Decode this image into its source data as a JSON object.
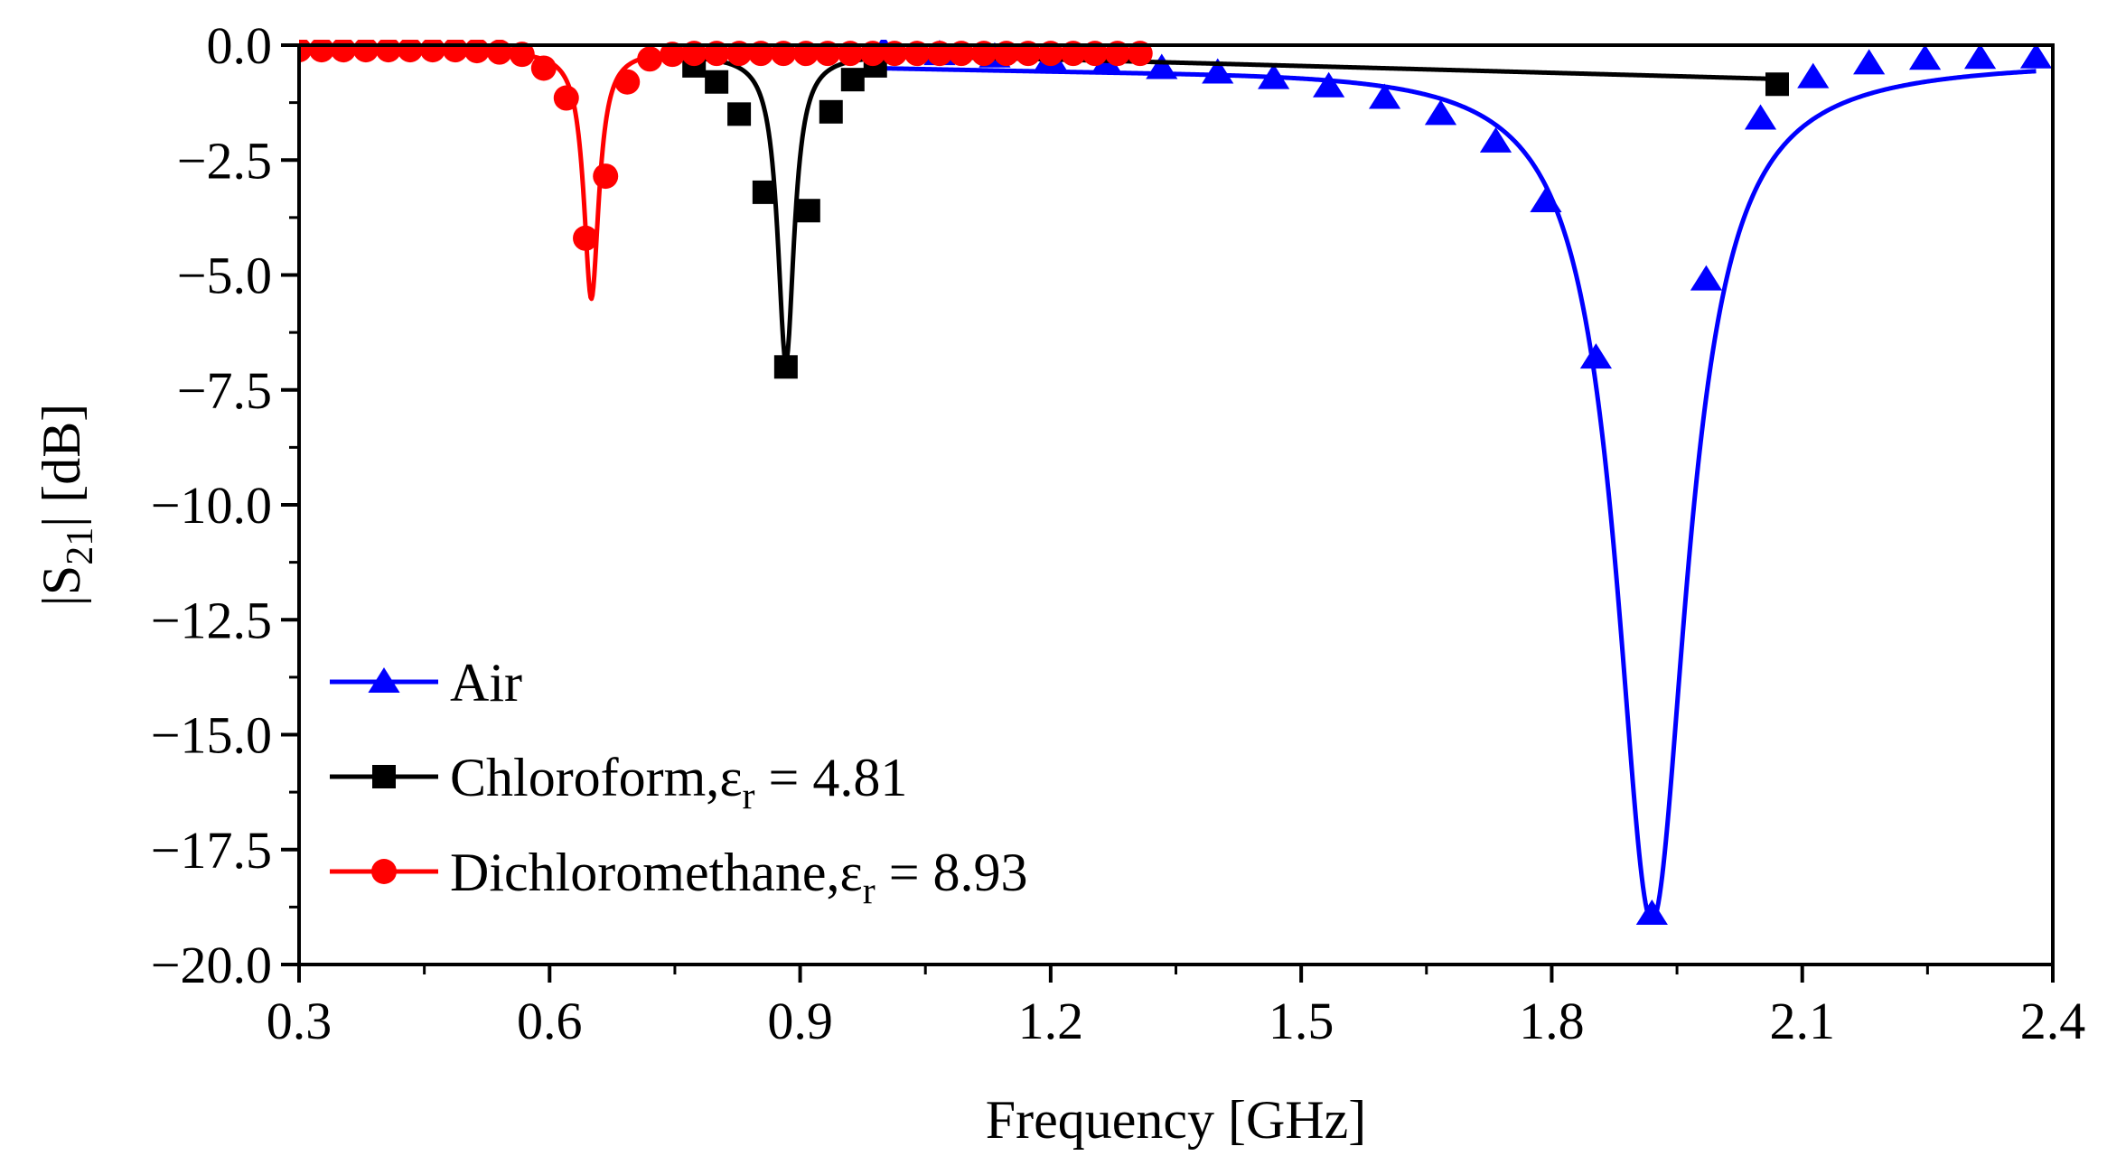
{
  "chart_data": {
    "type": "line",
    "xlabel": "Frequency [GHz]",
    "ylabel": {
      "prefix": "|S",
      "sub": "21",
      "suffix": "| [dB]"
    },
    "xlim": [
      0.3,
      2.4
    ],
    "ylim": [
      -20.0,
      0.0
    ],
    "xticks": [
      0.3,
      0.6,
      0.9,
      1.2,
      1.5,
      1.8,
      2.1,
      2.4
    ],
    "xtick_labels": [
      "0.3",
      "0.6",
      "0.9",
      "1.2",
      "1.5",
      "1.8",
      "2.1",
      "2.4"
    ],
    "yticks": [
      0.0,
      -2.5,
      -5.0,
      -7.5,
      -10.0,
      -12.5,
      -15.0,
      -17.5,
      -20.0
    ],
    "ytick_labels": [
      "0.0",
      "−2.5",
      "−5.0",
      "−7.5",
      "−10.0",
      "−12.5",
      "−15.0",
      "−17.5",
      "−20.0"
    ],
    "grid": false,
    "legend_position": "bottom-left",
    "series": [
      {
        "name": "Air",
        "legend": {
          "main": "Air",
          "sym": "",
          "sub": "",
          "value": ""
        },
        "color": "#0000ff",
        "marker": "triangle",
        "curve": {
          "f0": 1.92,
          "depth": 18.7,
          "width": 0.052,
          "base": -0.3,
          "ripple_center": 1.25,
          "ripple_depth": 0.18,
          "ripple_width": 0.5,
          "floor_slope": 0.0
        },
        "points": [
          [
            1.0,
            -0.1
          ],
          [
            1.067,
            -0.2
          ],
          [
            1.133,
            -0.25
          ],
          [
            1.2,
            -0.3
          ],
          [
            1.267,
            -0.4
          ],
          [
            1.333,
            -0.5
          ],
          [
            1.4,
            -0.6
          ],
          [
            1.467,
            -0.72
          ],
          [
            1.533,
            -0.9
          ],
          [
            1.6,
            -1.15
          ],
          [
            1.667,
            -1.5
          ],
          [
            1.733,
            -2.1
          ],
          [
            1.793,
            -3.4
          ],
          [
            1.853,
            -6.8
          ],
          [
            1.92,
            -18.9
          ],
          [
            1.985,
            -5.1
          ],
          [
            2.05,
            -1.6
          ],
          [
            2.113,
            -0.7
          ],
          [
            2.18,
            -0.4
          ],
          [
            2.247,
            -0.3
          ],
          [
            2.313,
            -0.28
          ],
          [
            2.38,
            -0.27
          ]
        ]
      },
      {
        "name": "Chloroform, εr = 4.81",
        "legend": {
          "main": "Chloroform,",
          "sym": "ε",
          "sub": "r",
          "value": " = 4.81"
        },
        "color": "#000000",
        "marker": "square",
        "curve": {
          "f0": 0.883,
          "depth": 6.7,
          "width": 0.012,
          "base": -0.2,
          "ripple_center": 0,
          "ripple_depth": 0,
          "ripple_width": 1,
          "floor_slope": 0.55
        },
        "points": [
          [
            0.773,
            -0.45
          ],
          [
            0.8,
            -0.8
          ],
          [
            0.827,
            -1.5
          ],
          [
            0.857,
            -3.2
          ],
          [
            0.883,
            -7.0
          ],
          [
            0.91,
            -3.6
          ],
          [
            0.937,
            -1.45
          ],
          [
            0.963,
            -0.75
          ],
          [
            0.99,
            -0.45
          ],
          [
            2.07,
            -0.85
          ]
        ]
      },
      {
        "name": "Dichloromethane, εr = 8.93",
        "legend": {
          "main": "Dichloromethane,",
          "sym": "ε",
          "sub": "r",
          "value": " = 8.93"
        },
        "color": "#ff0000",
        "marker": "circle",
        "curve": {
          "f0": 0.65,
          "depth": 5.4,
          "width": 0.011,
          "base": -0.12,
          "ripple_center": 0,
          "ripple_depth": 0,
          "ripple_width": 1,
          "floor_slope": 0.0
        },
        "points": [
          [
            0.3,
            -0.1
          ],
          [
            0.327,
            -0.1
          ],
          [
            0.353,
            -0.1
          ],
          [
            0.38,
            -0.1
          ],
          [
            0.407,
            -0.1
          ],
          [
            0.433,
            -0.1
          ],
          [
            0.46,
            -0.1
          ],
          [
            0.487,
            -0.1
          ],
          [
            0.513,
            -0.12
          ],
          [
            0.54,
            -0.15
          ],
          [
            0.567,
            -0.2
          ],
          [
            0.593,
            -0.5
          ],
          [
            0.62,
            -1.15
          ],
          [
            0.643,
            -4.2
          ],
          [
            0.667,
            -2.85
          ],
          [
            0.693,
            -0.8
          ],
          [
            0.72,
            -0.3
          ],
          [
            0.747,
            -0.2
          ],
          [
            0.773,
            -0.18
          ],
          [
            0.8,
            -0.18
          ],
          [
            0.827,
            -0.18
          ],
          [
            0.853,
            -0.18
          ],
          [
            0.88,
            -0.18
          ],
          [
            0.907,
            -0.18
          ],
          [
            0.933,
            -0.18
          ],
          [
            0.96,
            -0.18
          ],
          [
            0.987,
            -0.18
          ],
          [
            1.013,
            -0.18
          ],
          [
            1.04,
            -0.18
          ],
          [
            1.067,
            -0.18
          ],
          [
            1.093,
            -0.18
          ],
          [
            1.12,
            -0.18
          ],
          [
            1.147,
            -0.18
          ],
          [
            1.173,
            -0.18
          ],
          [
            1.2,
            -0.18
          ],
          [
            1.227,
            -0.18
          ],
          [
            1.253,
            -0.18
          ],
          [
            1.28,
            -0.18
          ],
          [
            1.307,
            -0.18
          ]
        ]
      }
    ]
  }
}
